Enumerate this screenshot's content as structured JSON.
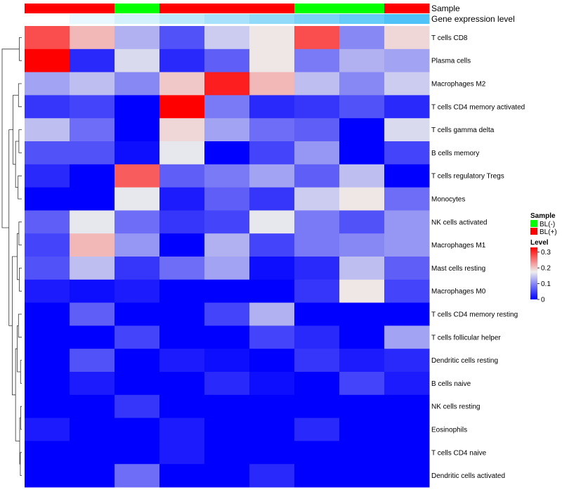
{
  "chart_data": {
    "type": "heatmap",
    "title": "",
    "annotation_rows": [
      {
        "name": "Sample",
        "values": [
          "BL(+)",
          "BL(+)",
          "BL(-)",
          "BL(+)",
          "BL(+)",
          "BL(+)",
          "BL(-)",
          "BL(-)",
          "BL(+)"
        ]
      },
      {
        "name": "Gene expression level",
        "values": [
          0,
          0.1,
          0.2,
          0.3,
          0.4,
          0.5,
          0.6,
          0.7,
          0.8
        ]
      }
    ],
    "rows": [
      "T cells CD8",
      "Plasma cells",
      "Macrophages M2",
      "T cells CD4 memory activated",
      "T cells gamma delta",
      "B cells memory",
      "T cells regulatory  Tregs",
      "Monocytes",
      "NK cells activated",
      "Macrophages M1",
      "Mast cells resting",
      "Macrophages M0",
      "T cells CD4 memory resting",
      "T cells follicular helper",
      "Dendritic cells resting",
      "B cells naive",
      "NK cells resting",
      "Eosinophils",
      "T cells CD4 naive",
      "Dendritic cells activated"
    ],
    "values": [
      [
        0.28,
        0.21,
        0.13,
        0.06,
        0.15,
        0.18,
        0.28,
        0.1,
        0.19
      ],
      [
        0.33,
        0.03,
        0.16,
        0.03,
        0.07,
        0.18,
        0.09,
        0.13,
        0.12
      ],
      [
        0.12,
        0.14,
        0.1,
        0.2,
        0.31,
        0.21,
        0.14,
        0.1,
        0.15
      ],
      [
        0.04,
        0.05,
        0.0,
        0.33,
        0.09,
        0.03,
        0.04,
        0.06,
        0.03
      ],
      [
        0.14,
        0.08,
        0.0,
        0.19,
        0.12,
        0.08,
        0.07,
        0.0,
        0.16
      ],
      [
        0.06,
        0.06,
        0.01,
        0.17,
        0.0,
        0.05,
        0.11,
        0.0,
        0.05
      ],
      [
        0.03,
        0.0,
        0.27,
        0.07,
        0.09,
        0.12,
        0.07,
        0.14,
        0.0
      ],
      [
        0.0,
        0.0,
        0.17,
        0.02,
        0.07,
        0.04,
        0.15,
        0.18,
        0.08
      ],
      [
        0.07,
        0.17,
        0.08,
        0.04,
        0.05,
        0.17,
        0.09,
        0.06,
        0.11
      ],
      [
        0.05,
        0.21,
        0.11,
        0.0,
        0.13,
        0.05,
        0.09,
        0.1,
        0.11
      ],
      [
        0.06,
        0.14,
        0.04,
        0.08,
        0.12,
        0.01,
        0.03,
        0.14,
        0.07
      ],
      [
        0.02,
        0.01,
        0.02,
        0.0,
        0.0,
        0.0,
        0.04,
        0.18,
        0.05
      ],
      [
        0.0,
        0.07,
        0.0,
        0.0,
        0.05,
        0.13,
        0.0,
        0.0,
        0.0
      ],
      [
        0.0,
        0.0,
        0.05,
        0.0,
        0.0,
        0.05,
        0.03,
        0.0,
        0.12
      ],
      [
        0.0,
        0.06,
        0.0,
        0.02,
        0.01,
        0.0,
        0.04,
        0.02,
        0.03
      ],
      [
        0.0,
        0.02,
        0.0,
        0.0,
        0.03,
        0.01,
        0.0,
        0.05,
        0.02
      ],
      [
        0.0,
        0.0,
        0.04,
        0.0,
        0.0,
        0.0,
        0.0,
        0.0,
        0.0
      ],
      [
        0.02,
        0.0,
        0.0,
        0.02,
        0.0,
        0.0,
        0.03,
        0.0,
        0.0
      ],
      [
        0.0,
        0.0,
        0.0,
        0.02,
        0.0,
        0.0,
        0.0,
        0.0,
        0.0
      ],
      [
        0.0,
        0.0,
        0.08,
        0.0,
        0.0,
        0.03,
        0.0,
        0.0,
        0.0
      ]
    ],
    "color_scale": {
      "stops": [
        {
          "value": 0,
          "color": "#0000ff"
        },
        {
          "value": 0.175,
          "color": "#eeeeee"
        },
        {
          "value": 0.33,
          "color": "#ff0000"
        }
      ],
      "ticks": [
        "0",
        "0.1",
        "0.2",
        "0.3"
      ],
      "tick_values": [
        0,
        0.1,
        0.2,
        0.3
      ]
    },
    "gene_expression_scale": {
      "low_color": "#ffffff",
      "high_color": "#4fc3f7",
      "range": [
        0,
        0.8
      ]
    },
    "legend": {
      "placement": "right",
      "sample_title": "Sample",
      "sample_items": [
        {
          "label": "BL(-)",
          "color": "#00ff00"
        },
        {
          "label": "BL(+)",
          "color": "#ff0000"
        }
      ],
      "level_title": "Level"
    },
    "row_dendrogram": true
  }
}
